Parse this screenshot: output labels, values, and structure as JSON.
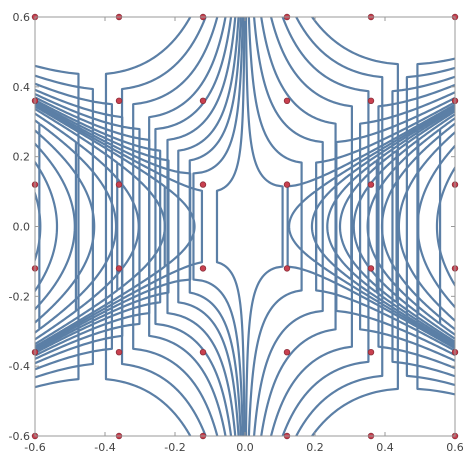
{
  "chart_data": {
    "type": "stream_plot",
    "title": "",
    "xlabel": "",
    "ylabel": "",
    "xlim": [
      -0.6,
      0.6
    ],
    "ylim": [
      -0.6,
      0.6
    ],
    "x_ticks": [
      -0.6,
      -0.4,
      -0.2,
      0.0,
      0.2,
      0.4,
      0.6
    ],
    "y_ticks": [
      -0.6,
      -0.4,
      -0.2,
      0.0,
      0.2,
      0.4,
      0.6
    ],
    "x_tick_labels": [
      "-0.6",
      "-0.4",
      "-0.2",
      "0.0",
      "0.2",
      "0.4",
      "0.6"
    ],
    "y_tick_labels": [
      "-0.6",
      "-0.4",
      "-0.2",
      "0.0",
      "0.2",
      "0.4",
      "0.6"
    ],
    "grid": false,
    "field": "saddle: streamlines follow x^3 - 3*x*y^2 = constant",
    "stream_constants": [
      -0.2,
      -0.155,
      -0.115,
      -0.08,
      -0.05,
      -0.028,
      -0.012,
      -0.003,
      0.002,
      0.007,
      0.013,
      0.02,
      0.03,
      0.043,
      0.06,
      0.085,
      0.12,
      0.165
    ],
    "seed_points": {
      "x": [
        -0.6,
        -0.36,
        -0.12,
        0.12,
        0.36,
        0.6
      ],
      "y": [
        -0.6,
        -0.36,
        -0.12,
        0.12,
        0.36,
        0.6
      ]
    },
    "stream_color": "#5B7FA6",
    "seed_color": "#C9404F"
  }
}
